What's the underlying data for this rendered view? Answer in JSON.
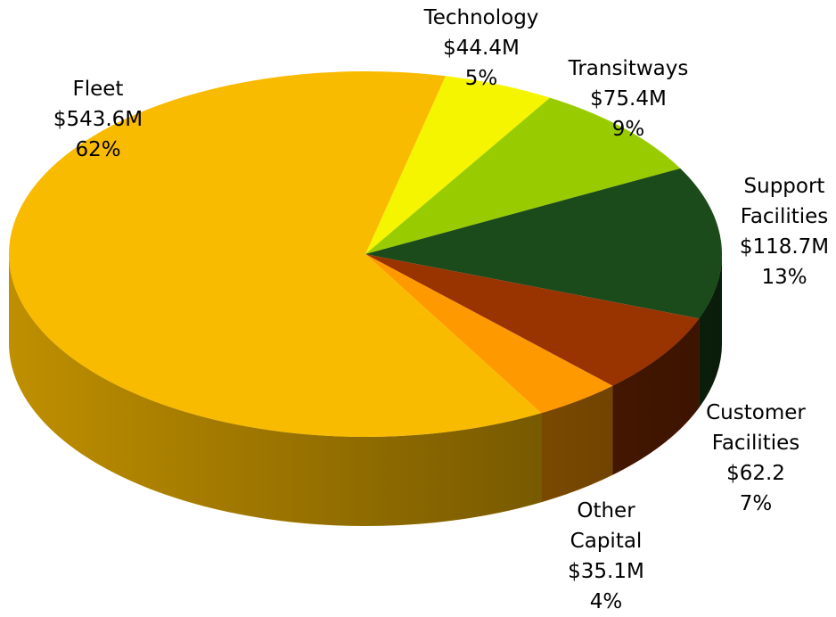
{
  "chart_data": {
    "type": "pie",
    "categories": [
      "Technology",
      "Transitways",
      "Support Facilities",
      "Customer Facilities",
      "Other Capital",
      "Fleet"
    ],
    "values": [
      44.4,
      75.4,
      118.7,
      62.2,
      35.1,
      543.6
    ],
    "value_labels": [
      "$44.4M",
      "$75.4M",
      "$118.7M",
      "$62.2",
      "$35.1M",
      "$543.6M"
    ],
    "percentages": [
      5,
      9,
      13,
      7,
      4,
      62
    ],
    "percentage_labels": [
      "5%",
      "9%",
      "13%",
      "7%",
      "4%",
      "62%"
    ],
    "colors": [
      "#f5f500",
      "#99cc00",
      "#1b4a1b",
      "#993300",
      "#ff9900",
      "#f9bb00"
    ]
  }
}
